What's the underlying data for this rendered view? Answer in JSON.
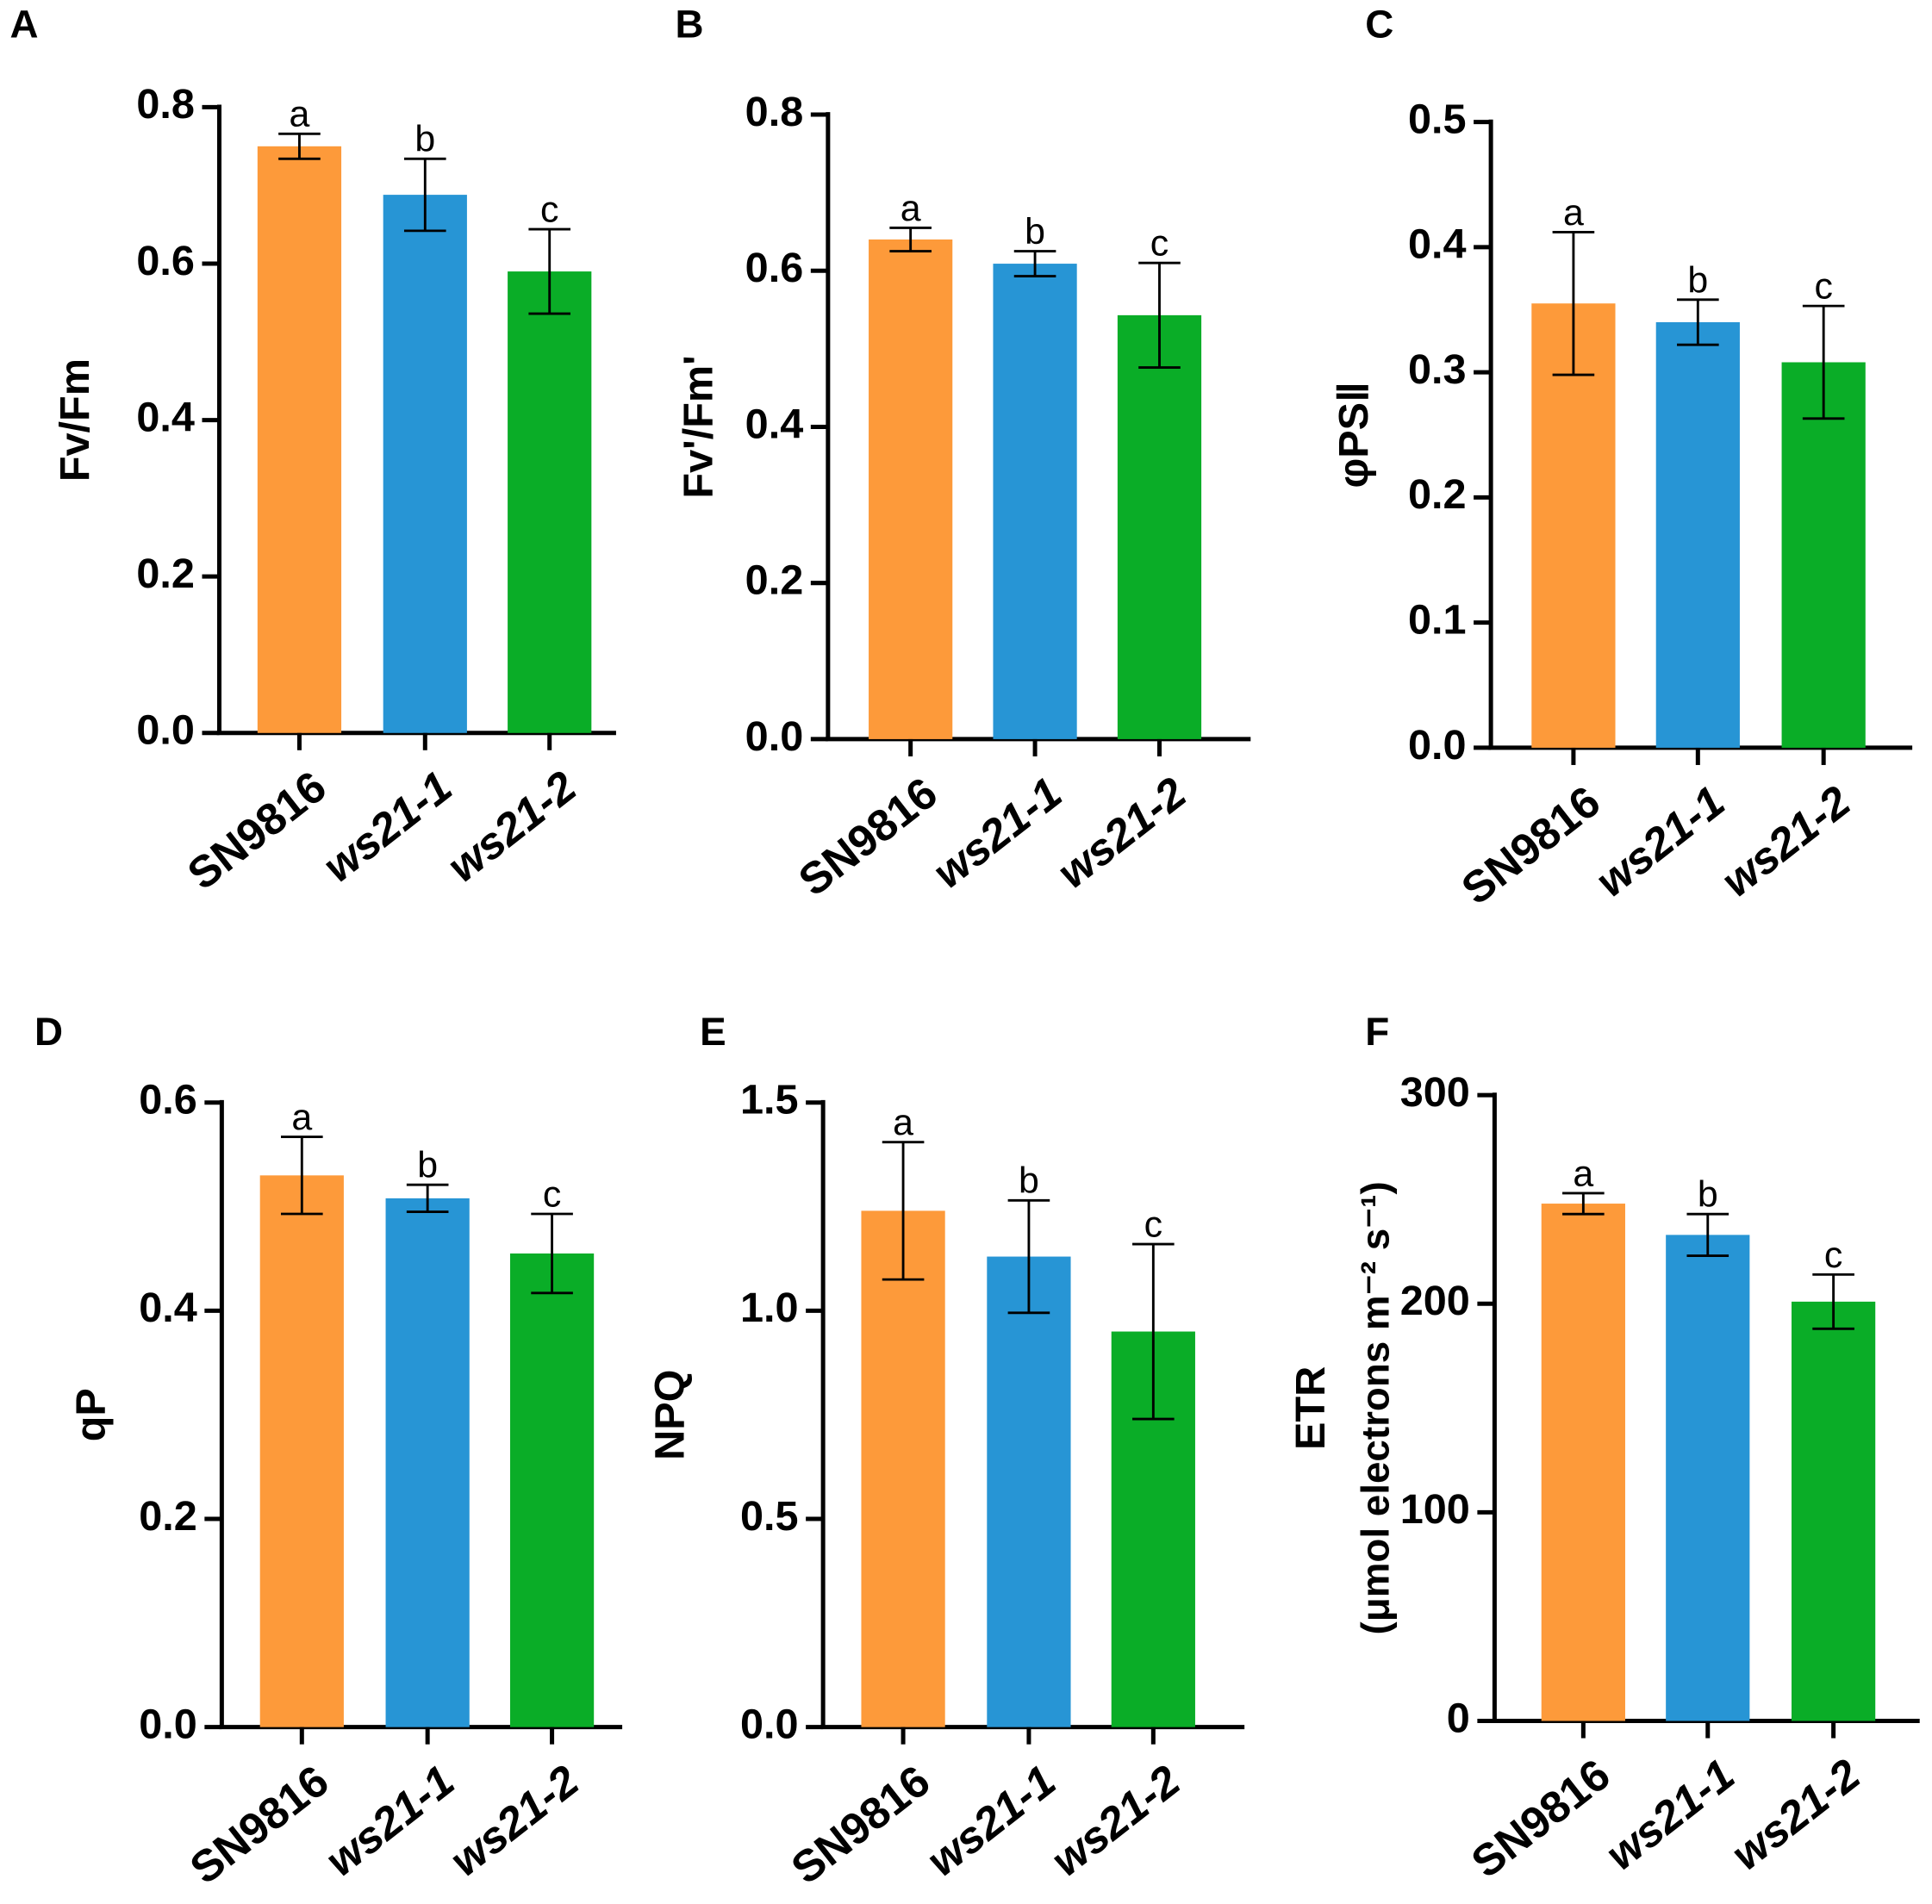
{
  "chart_data": [
    {
      "type": "bar",
      "panel": "A",
      "ylabel": "Fv/Fm",
      "categories": [
        "SN9816",
        "ws21-1",
        "ws21-2"
      ],
      "values": [
        0.75,
        0.688,
        0.59
      ],
      "errors": [
        0.016,
        0.046,
        0.054
      ],
      "annotations": [
        "a",
        "b",
        "c"
      ],
      "colors": [
        "#fd9a3a",
        "#2795d5",
        "#0aad27"
      ],
      "ylim": [
        0,
        0.8
      ],
      "yticks": [
        {
          "value": 0,
          "label": "0.0"
        },
        0.2,
        0.4,
        0.6,
        0.8
      ]
    },
    {
      "type": "bar",
      "panel": "B",
      "ylabel": "Fv'/Fm'",
      "categories": [
        "SN9816",
        "ws21-1",
        "ws21-2"
      ],
      "values": [
        0.64,
        0.609,
        0.543
      ],
      "errors": [
        0.015,
        0.016,
        0.067
      ],
      "annotations": [
        "a",
        "b",
        "c"
      ],
      "colors": [
        "#fd9a3a",
        "#2795d5",
        "#0aad27"
      ],
      "ylim": [
        0,
        0.8
      ],
      "yticks": [
        {
          "value": 0,
          "label": "0.0"
        },
        0.2,
        0.4,
        0.6,
        0.8
      ]
    },
    {
      "type": "bar",
      "panel": "C",
      "ylabel": "φPSⅡ",
      "categories": [
        "SN9816",
        "ws21-1",
        "ws21-2"
      ],
      "values": [
        0.355,
        0.34,
        0.308
      ],
      "errors": [
        0.057,
        0.018,
        0.045
      ],
      "annotations": [
        "a",
        "b",
        "c"
      ],
      "colors": [
        "#fd9a3a",
        "#2795d5",
        "#0aad27"
      ],
      "ylim": [
        0,
        0.5
      ],
      "yticks": [
        {
          "value": 0,
          "label": "0.0"
        },
        0.1,
        0.2,
        0.3,
        0.4,
        0.5
      ]
    },
    {
      "type": "bar",
      "panel": "D",
      "ylabel": "qP",
      "categories": [
        "SN9816",
        "ws21-1",
        "ws21-2"
      ],
      "values": [
        0.53,
        0.508,
        0.455
      ],
      "errors": [
        0.037,
        0.013,
        0.038
      ],
      "annotations": [
        "a",
        "b",
        "c"
      ],
      "colors": [
        "#fd9a3a",
        "#2795d5",
        "#0aad27"
      ],
      "ylim": [
        0,
        0.6
      ],
      "yticks": [
        {
          "value": 0,
          "label": "0.0"
        },
        0.2,
        0.4,
        0.6
      ]
    },
    {
      "type": "bar",
      "panel": "E",
      "ylabel": "NPQ",
      "categories": [
        "SN9816",
        "ws21-1",
        "ws21-2"
      ],
      "values": [
        1.24,
        1.13,
        0.95
      ],
      "errors": [
        0.165,
        0.135,
        0.21
      ],
      "annotations": [
        "a",
        "b",
        "c"
      ],
      "colors": [
        "#fd9a3a",
        "#2795d5",
        "#0aad27"
      ],
      "ylim": [
        0,
        1.5
      ],
      "yticks": [
        {
          "value": 0,
          "label": "0.0"
        },
        0.5,
        {
          "value": 1,
          "label": "1.0"
        },
        1.5
      ]
    },
    {
      "type": "bar",
      "panel": "F",
      "ylabel": "ETR",
      "ylabel_unit": "(μmol electrons m⁻² s⁻¹)",
      "categories": [
        "SN9816",
        "ws21-1",
        "ws21-2"
      ],
      "values": [
        248,
        233,
        201
      ],
      "errors": [
        5,
        10,
        13
      ],
      "annotations": [
        "a",
        "b",
        "c"
      ],
      "colors": [
        "#fd9a3a",
        "#2795d5",
        "#0aad27"
      ],
      "ylim": [
        0,
        300
      ],
      "yticks": [
        0,
        100,
        200,
        300
      ]
    }
  ]
}
